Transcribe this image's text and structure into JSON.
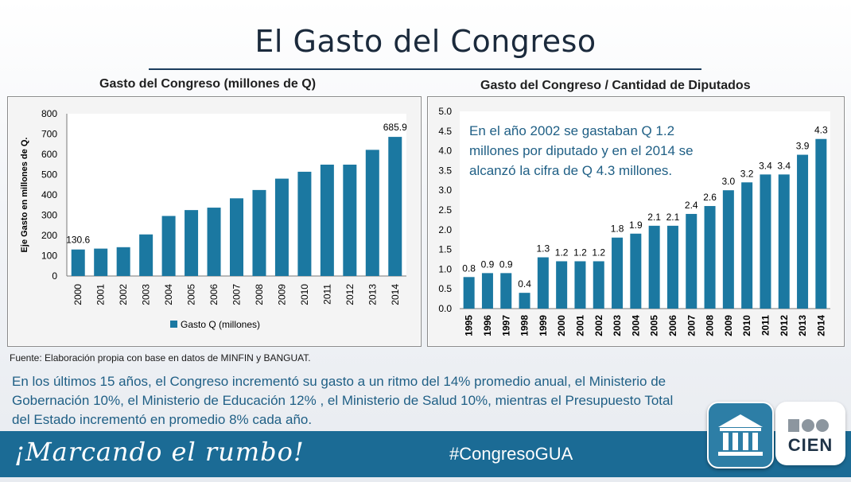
{
  "page": {
    "title": "El Gasto del Congreso",
    "source": "Fuente: Elaboración propia con base en datos de MINFIN y BANGUAT.",
    "summary": "En los últimos 15 años, el Congreso incrementó su gasto a un ritmo del 14% promedio anual, el Ministerio de Gobernación 10%, el Ministerio de Educación 12% , el Ministerio de Salud 10%, mientras el Presupuesto Total del Estado incrementó en promedio 8% cada año.",
    "slogan": "¡Marcando el rumbo!",
    "hashtag": "#CongresoGUA",
    "logo_text": "CIEN"
  },
  "colors": {
    "bar": "#1b78a1",
    "footer": "#1b6b95",
    "accent_text": "#1f5f85"
  },
  "chart_data": [
    {
      "type": "bar",
      "title": "Gasto del Congreso (millones de Q)",
      "ylabel": "Eje Gasto en millones de Q.",
      "ylim": [
        0,
        800
      ],
      "yticks": [
        0,
        100,
        200,
        300,
        400,
        500,
        600,
        700,
        800
      ],
      "legend": "bottom",
      "categories": [
        "2000",
        "2001",
        "2002",
        "2003",
        "2004",
        "2005",
        "2006",
        "2007",
        "2008",
        "2009",
        "2010",
        "2011",
        "2012",
        "2013",
        "2014"
      ],
      "series": [
        {
          "name": "Gasto Q (millones)",
          "values": [
            130.6,
            135,
            142,
            205,
            296,
            325,
            337,
            383,
            424,
            480,
            514,
            549,
            549,
            622,
            685.9
          ]
        }
      ],
      "data_labels": {
        "0": "130.6",
        "14": "685.9"
      }
    },
    {
      "type": "bar",
      "title": "Gasto del Congreso / Cantidad de Diputados",
      "ylim": [
        0,
        5
      ],
      "yticks": [
        "0.0",
        "0.5",
        "1.0",
        "1.5",
        "2.0",
        "2.5",
        "3.0",
        "3.5",
        "4.0",
        "4.5",
        "5.0"
      ],
      "annotation": [
        "En el año 2002 se gastaban Q 1.2",
        "millones por diputado y en el 2014 se",
        "alcanzó la cifra de Q 4.3 millones."
      ],
      "categories": [
        "1995",
        "1996",
        "1997",
        "1998",
        "1999",
        "2000",
        "2001",
        "2002",
        "2003",
        "2004",
        "2005",
        "2006",
        "2007",
        "2008",
        "2009",
        "2010",
        "2011",
        "2012",
        "2013",
        "2014"
      ],
      "values": [
        0.8,
        0.9,
        0.9,
        0.4,
        1.3,
        1.2,
        1.2,
        1.2,
        1.8,
        1.9,
        2.1,
        2.1,
        2.4,
        2.6,
        3.0,
        3.2,
        3.4,
        3.4,
        3.9,
        4.3
      ],
      "labels": [
        "0.8",
        "0.9",
        "0.9",
        "0.4",
        "1.3",
        "1.2",
        "1.2",
        "1.2",
        "1.8",
        "1.9",
        "2.1",
        "2.1",
        "2.4",
        "2.6",
        "3.0",
        "3.2",
        "3.4",
        "3.4",
        "3.9",
        "4.3"
      ]
    }
  ]
}
